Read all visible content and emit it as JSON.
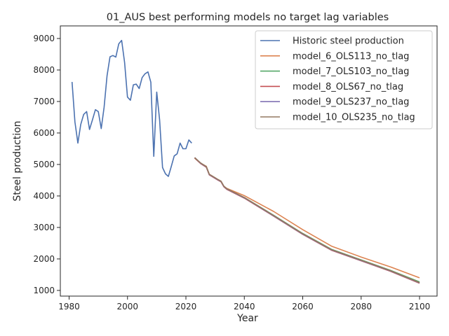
{
  "chart_data": {
    "type": "line",
    "title": "01_AUS best performing models no target lag variables",
    "xlabel": "Year",
    "ylabel": "Steel production",
    "xlim": [
      1977,
      2106
    ],
    "ylim": [
      820,
      9400
    ],
    "xticks": [
      1980,
      2000,
      2020,
      2040,
      2060,
      2080,
      2100
    ],
    "yticks": [
      1000,
      2000,
      3000,
      4000,
      5000,
      6000,
      7000,
      8000,
      9000
    ],
    "grid": false,
    "legend_position": "upper right",
    "series": [
      {
        "name": "Historic steel production",
        "color": "#4c72b0",
        "x": [
          1981,
          1982,
          1983,
          1984,
          1985,
          1986,
          1987,
          1988,
          1989,
          1990,
          1991,
          1992,
          1993,
          1994,
          1995,
          1996,
          1997,
          1998,
          1999,
          2000,
          2001,
          2002,
          2003,
          2004,
          2005,
          2006,
          2007,
          2008,
          2009,
          2010,
          2011,
          2012,
          2013,
          2014,
          2015,
          2016,
          2017,
          2018,
          2019,
          2020,
          2021,
          2022
        ],
        "y": [
          7620,
          6350,
          5680,
          6270,
          6590,
          6680,
          6110,
          6420,
          6740,
          6680,
          6140,
          6820,
          7820,
          8420,
          8460,
          8410,
          8830,
          8940,
          8240,
          7140,
          7040,
          7530,
          7550,
          7410,
          7760,
          7880,
          7940,
          7610,
          5260,
          7300,
          6420,
          4900,
          4700,
          4620,
          4940,
          5270,
          5340,
          5680,
          5500,
          5500,
          5780,
          5680
        ]
      },
      {
        "name": "model_6_OLS113_no_tlag",
        "color": "#dd8452",
        "x": [
          2023,
          2025,
          2027,
          2028,
          2031,
          2032,
          2033,
          2034,
          2040,
          2050,
          2060,
          2070,
          2080,
          2090,
          2100
        ],
        "y": [
          5200,
          5040,
          4940,
          4690,
          4520,
          4470,
          4310,
          4240,
          4010,
          3510,
          2930,
          2400,
          2060,
          1750,
          1400
        ]
      },
      {
        "name": "model_7_OLS103_no_tlag",
        "color": "#55a868",
        "x": [
          2023,
          2025,
          2027,
          2028,
          2031,
          2032,
          2033,
          2034,
          2040,
          2050,
          2060,
          2070,
          2080,
          2090,
          2100
        ],
        "y": [
          5210,
          5040,
          4920,
          4680,
          4510,
          4460,
          4300,
          4220,
          3950,
          3390,
          2810,
          2300,
          1970,
          1640,
          1270
        ]
      },
      {
        "name": "model_8_OLS67_no_tlag",
        "color": "#c44e52",
        "x": [
          2023,
          2025,
          2027,
          2028,
          2031,
          2032,
          2033,
          2034,
          2040,
          2050,
          2060,
          2070,
          2080,
          2090,
          2100
        ],
        "y": [
          5210,
          5030,
          4910,
          4670,
          4500,
          4450,
          4290,
          4210,
          3930,
          3360,
          2780,
          2270,
          1940,
          1610,
          1230
        ]
      },
      {
        "name": "model_9_OLS237_no_tlag",
        "color": "#8172b3",
        "x": [
          2023,
          2025,
          2027,
          2028,
          2031,
          2032,
          2033,
          2034,
          2040,
          2050,
          2060,
          2070,
          2080,
          2090,
          2100
        ],
        "y": [
          5220,
          5040,
          4920,
          4680,
          4510,
          4460,
          4300,
          4220,
          3940,
          3370,
          2790,
          2280,
          1950,
          1620,
          1240
        ]
      },
      {
        "name": "model_10_OLS235_no_tlag",
        "color": "#937860",
        "x": [
          2023,
          2025,
          2027,
          2028,
          2031,
          2032,
          2033,
          2034,
          2040,
          2050,
          2060,
          2070,
          2080,
          2090,
          2100
        ],
        "y": [
          5220,
          5050,
          4930,
          4690,
          4520,
          4470,
          4310,
          4230,
          3950,
          3380,
          2800,
          2290,
          1960,
          1630,
          1250
        ]
      }
    ]
  }
}
